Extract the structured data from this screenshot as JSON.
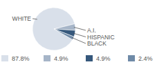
{
  "chart_data": {
    "type": "pie",
    "categories": [
      "WHITE",
      "A.I.",
      "HISPANIC",
      "BLACK"
    ],
    "values": [
      87.8,
      4.9,
      4.9,
      2.4
    ],
    "value_labels": [
      "87.8%",
      "4.9%",
      "4.9%",
      "2.4%"
    ],
    "colors": [
      "#d9e0ea",
      "#a6b5c8",
      "#36587c",
      "#6f8aa7"
    ],
    "legend": "bottom"
  }
}
